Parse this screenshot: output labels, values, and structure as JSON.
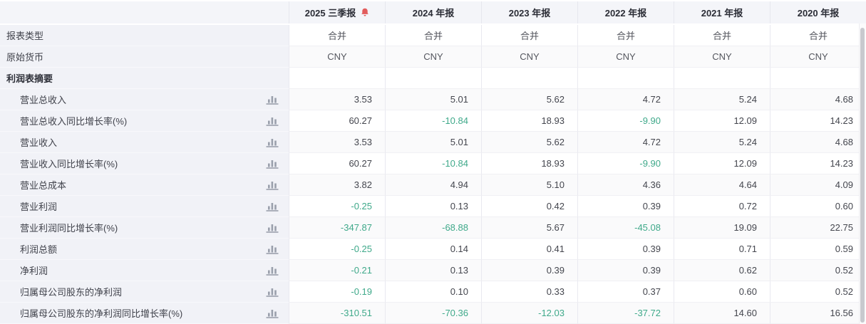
{
  "header": {
    "columns": [
      {
        "label": "2025 三季报",
        "alert": true
      },
      {
        "label": "2024 年报",
        "alert": false
      },
      {
        "label": "2023 年报",
        "alert": false
      },
      {
        "label": "2022 年报",
        "alert": false
      },
      {
        "label": "2021 年报",
        "alert": false
      },
      {
        "label": "2020 年报",
        "alert": false
      }
    ]
  },
  "meta_rows": [
    {
      "label": "报表类型",
      "values": [
        "合并",
        "合并",
        "合并",
        "合并",
        "合并",
        "合并"
      ]
    },
    {
      "label": "原始货币",
      "values": [
        "CNY",
        "CNY",
        "CNY",
        "CNY",
        "CNY",
        "CNY"
      ]
    }
  ],
  "section_label": "利润表摘要",
  "rows": [
    {
      "label": "营业总收入",
      "values": [
        "3.53",
        "5.01",
        "5.62",
        "4.72",
        "5.24",
        "4.68"
      ]
    },
    {
      "label": "营业总收入同比增长率(%)",
      "values": [
        "60.27",
        "-10.84",
        "18.93",
        "-9.90",
        "12.09",
        "14.23"
      ]
    },
    {
      "label": "营业收入",
      "values": [
        "3.53",
        "5.01",
        "5.62",
        "4.72",
        "5.24",
        "4.68"
      ]
    },
    {
      "label": "营业收入同比增长率(%)",
      "values": [
        "60.27",
        "-10.84",
        "18.93",
        "-9.90",
        "12.09",
        "14.23"
      ]
    },
    {
      "label": "营业总成本",
      "values": [
        "3.82",
        "4.94",
        "5.10",
        "4.36",
        "4.64",
        "4.09"
      ]
    },
    {
      "label": "营业利润",
      "values": [
        "-0.25",
        "0.13",
        "0.42",
        "0.39",
        "0.72",
        "0.60"
      ]
    },
    {
      "label": "营业利润同比增长率(%)",
      "values": [
        "-347.87",
        "-68.88",
        "5.67",
        "-45.08",
        "19.09",
        "22.75"
      ]
    },
    {
      "label": "利润总额",
      "values": [
        "-0.25",
        "0.14",
        "0.41",
        "0.39",
        "0.71",
        "0.59"
      ]
    },
    {
      "label": "净利润",
      "values": [
        "-0.21",
        "0.13",
        "0.39",
        "0.39",
        "0.62",
        "0.52"
      ]
    },
    {
      "label": "归属母公司股东的净利润",
      "values": [
        "-0.19",
        "0.10",
        "0.33",
        "0.37",
        "0.60",
        "0.52"
      ]
    },
    {
      "label": "归属母公司股东的净利润同比增长率(%)",
      "values": [
        "-310.51",
        "-70.36",
        "-12.03",
        "-37.72",
        "14.60",
        "16.56"
      ]
    }
  ],
  "icons": {
    "alert": "bell-icon",
    "row_chart": "bar-chart-icon"
  },
  "colors": {
    "negative_value": "#3fa98a",
    "alert_bell": "#e25c5c",
    "chart_icon": "#9aa0ac",
    "header_bg": "#f4f5f9",
    "label_column_bg": "#f1f2f7",
    "stripe_bg": "#fafafb"
  }
}
